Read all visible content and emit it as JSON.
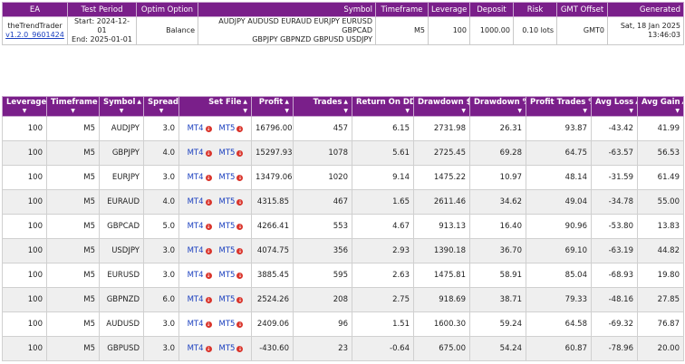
{
  "summary": {
    "headers": [
      "EA",
      "Test Period",
      "Optim Option",
      "Symbol",
      "Timeframe",
      "Leverage",
      "Deposit",
      "Risk",
      "GMT Offset",
      "Generated"
    ],
    "ea_name": "theTrendTrader",
    "ea_version": "v1.2.0_9601424",
    "start": "Start: 2024-12-01",
    "end": "End: 2025-01-01",
    "optim_option": "Balance",
    "symbols_line1": "AUDJPY AUDUSD EURAUD EURJPY EURUSD GBPCAD",
    "symbols_line2": "GBPJPY GBPNZD GBPUSD USDJPY",
    "timeframe": "M5",
    "leverage": "100",
    "deposit": "1000.00",
    "risk": "0.10 lots",
    "gmt_offset": "GMT0",
    "generated": "Sat, 18 Jan 2025 13:46:03"
  },
  "results": {
    "headers": [
      "Leverage",
      "Timeframe",
      "Symbol",
      "Spread",
      "Set File",
      "Profit",
      "Trades",
      "Return On DD",
      "Drawdown $",
      "Drawdown %",
      "Profit Trades %",
      "Avg Loss",
      "Avg Gain"
    ],
    "mt4_label": "MT4",
    "mt5_label": "MT5",
    "rows": [
      [
        "100",
        "M5",
        "AUDJPY",
        "3.0",
        "16796.00",
        "457",
        "6.15",
        "2731.98",
        "26.31",
        "93.87",
        "-43.42",
        "41.99"
      ],
      [
        "100",
        "M5",
        "GBPJPY",
        "4.0",
        "15297.93",
        "1078",
        "5.61",
        "2725.45",
        "69.28",
        "64.75",
        "-63.57",
        "56.53"
      ],
      [
        "100",
        "M5",
        "EURJPY",
        "3.0",
        "13479.06",
        "1020",
        "9.14",
        "1475.22",
        "10.97",
        "48.14",
        "-31.59",
        "61.49"
      ],
      [
        "100",
        "M5",
        "EURAUD",
        "4.0",
        "4315.85",
        "467",
        "1.65",
        "2611.46",
        "34.62",
        "49.04",
        "-34.78",
        "55.00"
      ],
      [
        "100",
        "M5",
        "GBPCAD",
        "5.0",
        "4266.41",
        "553",
        "4.67",
        "913.13",
        "16.40",
        "90.96",
        "-53.80",
        "13.83"
      ],
      [
        "100",
        "M5",
        "USDJPY",
        "3.0",
        "4074.75",
        "356",
        "2.93",
        "1390.18",
        "36.70",
        "69.10",
        "-63.19",
        "44.82"
      ],
      [
        "100",
        "M5",
        "EURUSD",
        "3.0",
        "3885.45",
        "595",
        "2.63",
        "1475.81",
        "58.91",
        "85.04",
        "-68.93",
        "19.80"
      ],
      [
        "100",
        "M5",
        "GBPNZD",
        "6.0",
        "2524.26",
        "208",
        "2.75",
        "918.69",
        "38.71",
        "79.33",
        "-48.16",
        "27.85"
      ],
      [
        "100",
        "M5",
        "AUDUSD",
        "3.0",
        "2409.06",
        "96",
        "1.51",
        "1600.30",
        "59.24",
        "64.58",
        "-69.32",
        "76.87"
      ],
      [
        "100",
        "M5",
        "GBPUSD",
        "3.0",
        "-430.60",
        "23",
        "-0.64",
        "675.00",
        "54.24",
        "60.87",
        "-78.96",
        "20.00"
      ]
    ]
  }
}
